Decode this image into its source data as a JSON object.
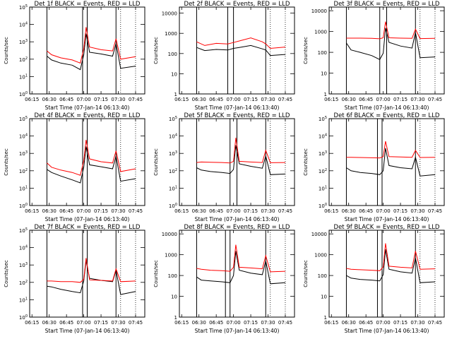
{
  "figure": {
    "xlabel": "Start Time (07-Jan-14 06:13:40)",
    "ylabel": "Counts/sec",
    "x_ticks": [
      "06:15",
      "06:30",
      "06:45",
      "07:00",
      "07:15",
      "07:30",
      "07:45"
    ],
    "colors": {
      "events": "#000000",
      "lld": "#ff0000",
      "background": "#ffffff"
    }
  },
  "chart_data": [
    {
      "type": "line",
      "title": "Det 1f BLACK = Events, RED = LLD",
      "xlabel": "Start Time (07-Jan-14 06:13:40)",
      "ylabel": "Counts/sec",
      "yscale": "log",
      "ylim": [
        1,
        100000
      ],
      "y_ticks": [
        "10^0",
        "10^1",
        "10^2",
        "10^3",
        "10^4",
        "10^5"
      ],
      "x_ticks": [
        "06:15",
        "06:30",
        "06:45",
        "07:00",
        "07:15",
        "07:30",
        "07:45"
      ],
      "series": [
        {
          "name": "Events",
          "color": "#000000",
          "x": [
            "06:28",
            "06:32",
            "06:40",
            "06:50",
            "06:57",
            "07:00",
            "07:02",
            "07:05",
            "07:15",
            "07:25",
            "07:28",
            "07:32",
            "07:45"
          ],
          "y": [
            150,
            90,
            60,
            45,
            25,
            180,
            3000,
            250,
            200,
            150,
            800,
            30,
            40
          ]
        },
        {
          "name": "LLD",
          "color": "#ff0000",
          "x": [
            "06:28",
            "06:32",
            "06:40",
            "06:50",
            "06:57",
            "07:00",
            "07:02",
            "07:05",
            "07:15",
            "07:25",
            "07:28",
            "07:32",
            "07:45"
          ],
          "y": [
            300,
            180,
            120,
            90,
            60,
            400,
            7000,
            500,
            350,
            300,
            1500,
            100,
            140
          ]
        }
      ],
      "vlines": [
        "06:28",
        "06:59",
        "07:03",
        "07:28"
      ],
      "dashed_vlines": [
        "07:32",
        "07:45"
      ]
    },
    {
      "type": "line",
      "title": "Det 2f BLACK = Events, RED = LLD",
      "xlabel": "Start Time (07-Jan-14 06:13:40)",
      "ylabel": "Counts/sec",
      "yscale": "log",
      "ylim": [
        1,
        20000
      ],
      "y_ticks": [
        "1",
        "10",
        "100",
        "1000",
        "10000"
      ],
      "x_ticks": [
        "06:15",
        "06:30",
        "06:45",
        "07:00",
        "07:15",
        "07:30",
        "07:45"
      ],
      "series": [
        {
          "name": "Events",
          "color": "#000000",
          "x": [
            "06:28",
            "06:35",
            "06:45",
            "06:55",
            "07:00",
            "07:05",
            "07:15",
            "07:25",
            "07:28",
            "07:32",
            "07:45"
          ],
          "y": [
            200,
            140,
            160,
            150,
            180,
            200,
            250,
            170,
            150,
            80,
            90
          ]
        },
        {
          "name": "LLD",
          "color": "#ff0000",
          "x": [
            "06:28",
            "06:35",
            "06:45",
            "06:55",
            "07:00",
            "07:05",
            "07:15",
            "07:25",
            "07:28",
            "07:32",
            "07:45"
          ],
          "y": [
            380,
            250,
            320,
            300,
            350,
            420,
            600,
            380,
            300,
            180,
            210
          ]
        }
      ],
      "vlines": [
        "06:28",
        "06:55",
        "07:00",
        "07:28"
      ],
      "dashed_vlines": [
        "07:32",
        "07:45"
      ]
    },
    {
      "type": "line",
      "title": "Det 3f BLACK = Events, RED = LLD",
      "xlabel": "Start Time (07-Jan-14 06:13:40)",
      "ylabel": "Counts/sec",
      "yscale": "log",
      "ylim": [
        1,
        15000
      ],
      "y_ticks": [
        "1",
        "10",
        "100",
        "1000",
        "10000"
      ],
      "x_ticks": [
        "06:15",
        "06:30",
        "06:45",
        "07:00",
        "07:15",
        "07:30",
        "07:45"
      ],
      "series": [
        {
          "name": "Events",
          "color": "#000000",
          "x": [
            "06:28",
            "06:32",
            "06:40",
            "06:50",
            "06:57",
            "07:00",
            "07:02",
            "07:05",
            "07:15",
            "07:25",
            "07:28",
            "07:32",
            "07:45"
          ],
          "y": [
            280,
            130,
            100,
            70,
            45,
            90,
            1500,
            300,
            200,
            160,
            900,
            55,
            60
          ]
        },
        {
          "name": "LLD",
          "color": "#ff0000",
          "x": [
            "06:28",
            "06:32",
            "06:40",
            "06:50",
            "06:57",
            "07:00",
            "07:02",
            "07:05",
            "07:15",
            "07:25",
            "07:28",
            "07:32",
            "07:45"
          ],
          "y": [
            480,
            480,
            480,
            470,
            450,
            500,
            3000,
            500,
            480,
            470,
            1300,
            460,
            470
          ]
        }
      ],
      "vlines": [
        "06:28",
        "06:57",
        "07:03",
        "07:28"
      ],
      "dashed_vlines": [
        "07:32",
        "07:45"
      ]
    },
    {
      "type": "line",
      "title": "Det 4f BLACK = Events, RED = LLD",
      "xlabel": "Start Time (07-Jan-14 06:13:40)",
      "ylabel": "Counts/sec",
      "yscale": "log",
      "ylim": [
        1,
        100000
      ],
      "y_ticks": [
        "10^0",
        "10^1",
        "10^2",
        "10^3",
        "10^4",
        "10^5"
      ],
      "x_ticks": [
        "06:15",
        "06:30",
        "06:45",
        "07:00",
        "07:15",
        "07:30",
        "07:45"
      ],
      "series": [
        {
          "name": "Events",
          "color": "#000000",
          "x": [
            "06:28",
            "06:32",
            "06:40",
            "06:50",
            "06:57",
            "07:00",
            "07:02",
            "07:05",
            "07:15",
            "07:25",
            "07:28",
            "07:32",
            "07:45"
          ],
          "y": [
            120,
            80,
            50,
            30,
            20,
            160,
            2500,
            220,
            170,
            130,
            700,
            25,
            35
          ]
        },
        {
          "name": "LLD",
          "color": "#ff0000",
          "x": [
            "06:28",
            "06:32",
            "06:40",
            "06:50",
            "06:57",
            "07:00",
            "07:02",
            "07:05",
            "07:15",
            "07:25",
            "07:28",
            "07:32",
            "07:45"
          ],
          "y": [
            280,
            160,
            110,
            80,
            55,
            380,
            6000,
            480,
            330,
            280,
            1400,
            90,
            130
          ]
        }
      ],
      "vlines": [
        "06:28",
        "06:59",
        "07:03",
        "07:28"
      ],
      "dashed_vlines": [
        "07:32",
        "07:45"
      ]
    },
    {
      "type": "line",
      "title": "Det 5f BLACK = Events, RED = LLD",
      "xlabel": "Start Time (07-Jan-14 06:13:40)",
      "ylabel": "Counts/sec",
      "yscale": "log",
      "ylim": [
        1,
        100000
      ],
      "y_ticks": [
        "10^0",
        "10^1",
        "10^2",
        "10^3",
        "10^4",
        "10^5"
      ],
      "x_ticks": [
        "06:15",
        "06:30",
        "06:45",
        "07:00",
        "07:15",
        "07:30",
        "07:45"
      ],
      "series": [
        {
          "name": "Events",
          "color": "#000000",
          "x": [
            "06:28",
            "06:32",
            "06:40",
            "06:50",
            "06:57",
            "07:00",
            "07:02",
            "07:05",
            "07:15",
            "07:25",
            "07:28",
            "07:32",
            "07:45"
          ],
          "y": [
            150,
            110,
            90,
            80,
            70,
            120,
            3000,
            250,
            180,
            140,
            700,
            60,
            65
          ]
        },
        {
          "name": "LLD",
          "color": "#ff0000",
          "x": [
            "06:28",
            "06:32",
            "06:40",
            "06:50",
            "06:57",
            "07:00",
            "07:02",
            "07:05",
            "07:15",
            "07:25",
            "07:28",
            "07:32",
            "07:45"
          ],
          "y": [
            300,
            320,
            310,
            300,
            280,
            350,
            8000,
            350,
            320,
            300,
            1500,
            290,
            300
          ]
        }
      ],
      "vlines": [
        "06:28",
        "06:57",
        "07:03",
        "07:28"
      ],
      "dashed_vlines": [
        "07:32",
        "07:45"
      ]
    },
    {
      "type": "line",
      "title": "Det 6f BLACK = Events, RED = LLD",
      "xlabel": "Start Time (07-Jan-14 06:13:40)",
      "ylabel": "Counts/sec",
      "yscale": "log",
      "ylim": [
        1,
        100000
      ],
      "y_ticks": [
        "10^0",
        "10^1",
        "10^2",
        "10^3",
        "10^4",
        "10^5"
      ],
      "x_ticks": [
        "06:15",
        "06:30",
        "06:45",
        "07:00",
        "07:15",
        "07:30",
        "07:45"
      ],
      "series": [
        {
          "name": "Events",
          "color": "#000000",
          "x": [
            "06:28",
            "06:32",
            "06:40",
            "06:50",
            "06:57",
            "07:00",
            "07:02",
            "07:05",
            "07:15",
            "07:25",
            "07:28",
            "07:32",
            "07:45"
          ],
          "y": [
            150,
            100,
            80,
            70,
            60,
            100,
            2000,
            200,
            150,
            130,
            600,
            50,
            60
          ]
        },
        {
          "name": "LLD",
          "color": "#ff0000",
          "x": [
            "06:28",
            "06:32",
            "06:40",
            "06:50",
            "06:57",
            "07:00",
            "07:02",
            "07:05",
            "07:15",
            "07:25",
            "07:28",
            "07:32",
            "07:45"
          ],
          "y": [
            600,
            600,
            580,
            560,
            550,
            650,
            5000,
            650,
            620,
            600,
            1500,
            580,
            590
          ]
        }
      ],
      "vlines": [
        "06:28",
        "06:55",
        "06:59",
        "07:28"
      ],
      "dashed_vlines": [
        "07:32",
        "07:45"
      ]
    },
    {
      "type": "line",
      "title": "Det 7f BLACK = Events, RED = LLD",
      "xlabel": "Start Time (07-Jan-14 06:13:40)",
      "ylabel": "Counts/sec",
      "yscale": "log",
      "ylim": [
        1,
        100000
      ],
      "y_ticks": [
        "10^0",
        "10^1",
        "10^2",
        "10^3",
        "10^4",
        "10^5"
      ],
      "x_ticks": [
        "06:15",
        "06:30",
        "06:45",
        "07:00",
        "07:15",
        "07:30",
        "07:45"
      ],
      "series": [
        {
          "name": "Events",
          "color": "#000000",
          "x": [
            "06:28",
            "06:32",
            "06:40",
            "06:50",
            "06:57",
            "07:00",
            "07:02",
            "07:05",
            "07:15",
            "07:25",
            "07:28",
            "07:32",
            "07:45"
          ],
          "y": [
            60,
            55,
            40,
            30,
            25,
            120,
            1800,
            170,
            130,
            110,
            500,
            20,
            30
          ]
        },
        {
          "name": "LLD",
          "color": "#ff0000",
          "x": [
            "06:28",
            "06:32",
            "06:40",
            "06:50",
            "06:57",
            "07:00",
            "07:02",
            "07:05",
            "07:15",
            "07:25",
            "07:28",
            "07:32",
            "07:45"
          ],
          "y": [
            120,
            120,
            110,
            110,
            100,
            150,
            2500,
            140,
            130,
            120,
            600,
            110,
            120
          ]
        }
      ],
      "vlines": [
        "06:28",
        "06:59",
        "07:03",
        "07:28"
      ],
      "dashed_vlines": [
        "07:32",
        "07:45"
      ]
    },
    {
      "type": "line",
      "title": "Det 8f BLACK = Events, RED = LLD",
      "xlabel": "Start Time (07-Jan-14 06:13:40)",
      "ylabel": "Counts/sec",
      "yscale": "log",
      "ylim": [
        1,
        15000
      ],
      "y_ticks": [
        "1",
        "10",
        "100",
        "1000",
        "10000"
      ],
      "x_ticks": [
        "06:15",
        "06:30",
        "06:45",
        "07:00",
        "07:15",
        "07:30",
        "07:45"
      ],
      "series": [
        {
          "name": "Events",
          "color": "#000000",
          "x": [
            "06:28",
            "06:32",
            "06:40",
            "06:50",
            "06:57",
            "07:00",
            "07:02",
            "07:05",
            "07:15",
            "07:25",
            "07:28",
            "07:32",
            "07:45"
          ],
          "y": [
            85,
            60,
            55,
            50,
            45,
            100,
            1500,
            180,
            130,
            110,
            500,
            40,
            45
          ]
        },
        {
          "name": "LLD",
          "color": "#ff0000",
          "x": [
            "06:28",
            "06:32",
            "06:40",
            "06:50",
            "06:57",
            "07:00",
            "07:02",
            "07:05",
            "07:15",
            "07:25",
            "07:28",
            "07:32",
            "07:45"
          ],
          "y": [
            220,
            200,
            180,
            170,
            160,
            250,
            3000,
            250,
            230,
            210,
            900,
            150,
            160
          ]
        }
      ],
      "vlines": [
        "06:28",
        "06:53",
        "06:57",
        "07:28"
      ],
      "dashed_vlines": [
        "07:32",
        "07:45"
      ]
    },
    {
      "type": "line",
      "title": "Det 9f BLACK = Events, RED = LLD",
      "xlabel": "Start Time (07-Jan-14 06:13:40)",
      "ylabel": "Counts/sec",
      "yscale": "log",
      "ylim": [
        1,
        15000
      ],
      "y_ticks": [
        "1",
        "10",
        "100",
        "1000",
        "10000"
      ],
      "x_ticks": [
        "06:15",
        "06:30",
        "06:45",
        "07:00",
        "07:15",
        "07:30",
        "07:45"
      ],
      "series": [
        {
          "name": "Events",
          "color": "#000000",
          "x": [
            "06:28",
            "06:32",
            "06:40",
            "06:50",
            "06:57",
            "07:00",
            "07:02",
            "07:05",
            "07:15",
            "07:25",
            "07:28",
            "07:32",
            "07:45"
          ],
          "y": [
            100,
            75,
            65,
            60,
            55,
            110,
            1800,
            200,
            150,
            130,
            700,
            45,
            50
          ]
        },
        {
          "name": "LLD",
          "color": "#ff0000",
          "x": [
            "06:28",
            "06:32",
            "06:40",
            "06:50",
            "06:57",
            "07:00",
            "07:02",
            "07:05",
            "07:15",
            "07:25",
            "07:28",
            "07:32",
            "07:45"
          ],
          "y": [
            220,
            200,
            190,
            180,
            170,
            260,
            3500,
            280,
            250,
            230,
            1500,
            200,
            210
          ]
        }
      ],
      "vlines": [
        "06:28",
        "06:55",
        "06:59",
        "07:28"
      ],
      "dashed_vlines": [
        "07:32",
        "07:45"
      ]
    }
  ]
}
